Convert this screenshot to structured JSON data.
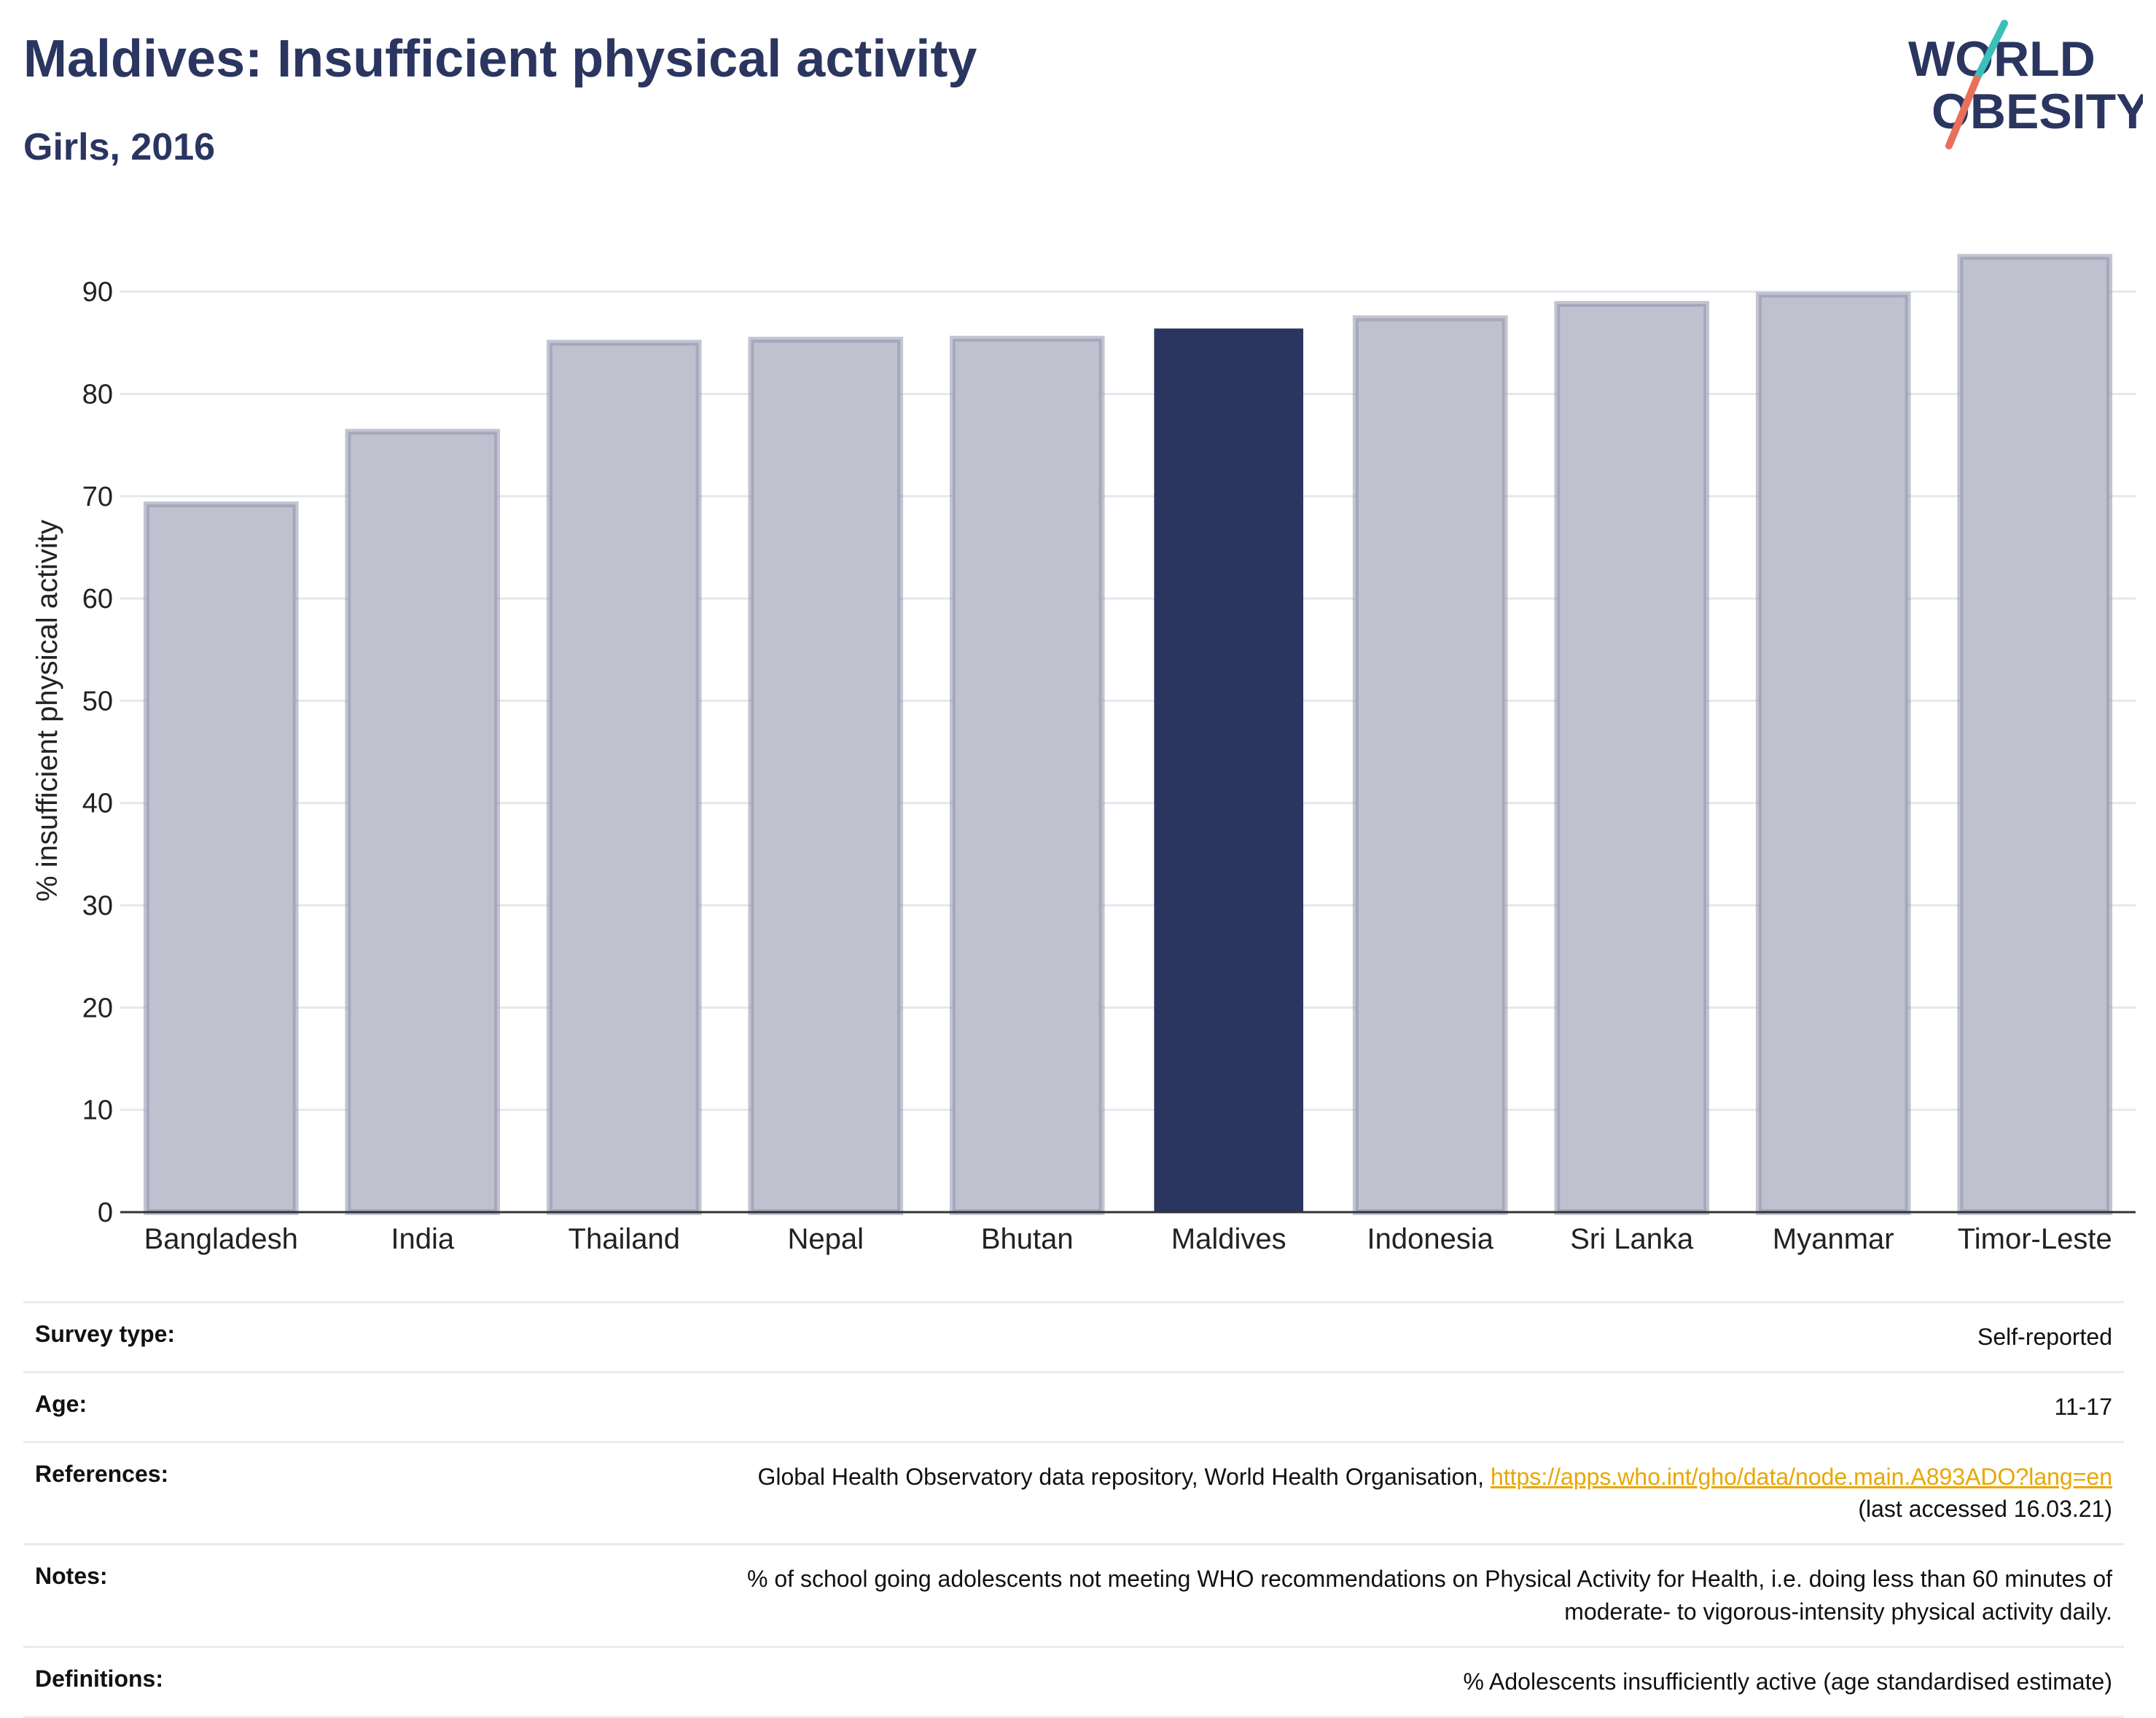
{
  "title": "Maldives: Insufficient physical activity",
  "subtitle": "Girls, 2016",
  "logo": {
    "line1": "WORLD",
    "line2": "OBESITY",
    "accent_top": "#3bbfb8",
    "accent_bottom": "#e8705a"
  },
  "colors": {
    "highlight": "#2a3560",
    "bar_fill": "#bfc2ce",
    "bar_stroke": "#8f94ad",
    "grid": "#e6e8ee"
  },
  "chart_data": {
    "type": "bar",
    "categories": [
      "Bangladesh",
      "India",
      "Thailand",
      "Nepal",
      "Bhutan",
      "Maldives",
      "Indonesia",
      "Sri Lanka",
      "Myanmar",
      "Timor-Leste"
    ],
    "values": [
      69.2,
      76.3,
      85.0,
      85.3,
      85.4,
      86.4,
      87.4,
      88.8,
      89.7,
      93.4
    ],
    "highlight": "Maldives",
    "ylabel": "% insufficient physical activity",
    "yticks": [
      0,
      10,
      20,
      30,
      40,
      50,
      60,
      70,
      80,
      90
    ],
    "ylim": [
      0,
      95
    ],
    "grid": true
  },
  "info": {
    "survey_type_label": "Survey type:",
    "survey_type": "Self-reported",
    "age_label": "Age:",
    "age": "11-17",
    "references_label": "References:",
    "references_text": "Global Health Observatory data repository, World Health Organisation, ",
    "references_link": "https://apps.who.int/gho/data/node.main.A893ADO?lang=en",
    "references_accessed": "(last accessed 16.03.21)",
    "notes_label": "Notes:",
    "notes_line1": "% of school going adolescents not meeting WHO recommendations on Physical Activity for Health, i.e. doing less than 60 minutes of",
    "notes_line2": "moderate- to vigorous-intensity physical activity daily.",
    "definitions_label": "Definitions:",
    "definitions": "% Adolescents insufficiently active (age standardised estimate)"
  }
}
